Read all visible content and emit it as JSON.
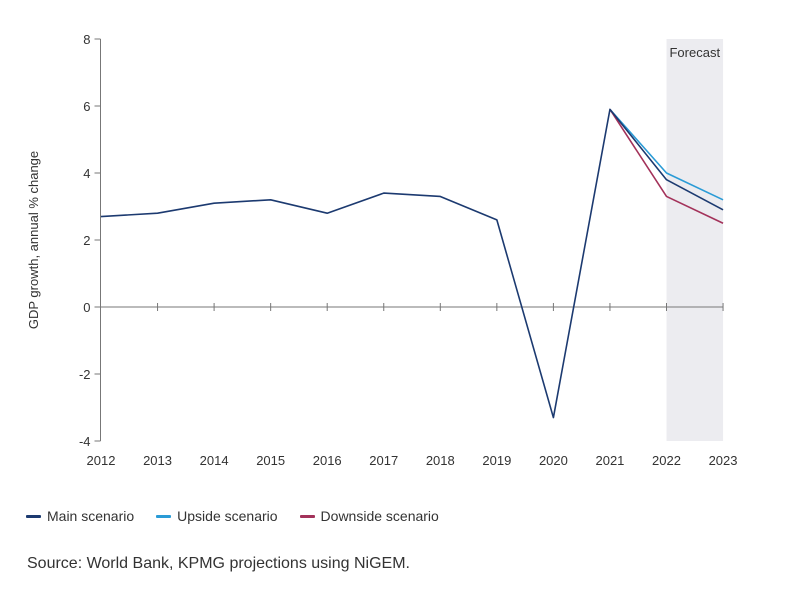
{
  "chart_data": {
    "type": "line",
    "title": "",
    "xlabel": "",
    "ylabel": "GDP growth, annual % change",
    "ylim": [
      -4,
      8
    ],
    "yticks": [
      8,
      6,
      4,
      2,
      0,
      -2,
      -4
    ],
    "categories": [
      "2012",
      "2013",
      "2014",
      "2015",
      "2016",
      "2017",
      "2018",
      "2019",
      "2020",
      "2021",
      "2022",
      "2023"
    ],
    "grid": false,
    "forecast_region": {
      "label": "Forecast",
      "from": "2022",
      "to": "2023",
      "color": "#ececf0"
    },
    "series": [
      {
        "name": "Main scenario",
        "color": "#1c3a70",
        "values": [
          2.7,
          2.8,
          3.1,
          3.2,
          2.8,
          3.4,
          3.3,
          2.6,
          -3.3,
          5.9,
          3.8,
          2.9
        ]
      },
      {
        "name": "Upside scenario",
        "color": "#2a9bd6",
        "values": [
          null,
          null,
          null,
          null,
          null,
          null,
          null,
          null,
          null,
          5.9,
          4.0,
          3.2
        ]
      },
      {
        "name": "Downside scenario",
        "color": "#a3325a",
        "values": [
          null,
          null,
          null,
          null,
          null,
          null,
          null,
          null,
          null,
          5.9,
          3.3,
          2.5
        ]
      }
    ],
    "legend_position": "bottom-left"
  },
  "legend": [
    {
      "label": "Main scenario",
      "color": "#1c3a70"
    },
    {
      "label": "Upside scenario",
      "color": "#2a9bd6"
    },
    {
      "label": "Downside scenario",
      "color": "#a3325a"
    }
  ],
  "source": "Source: World Bank, KPMG projections using NiGEM."
}
